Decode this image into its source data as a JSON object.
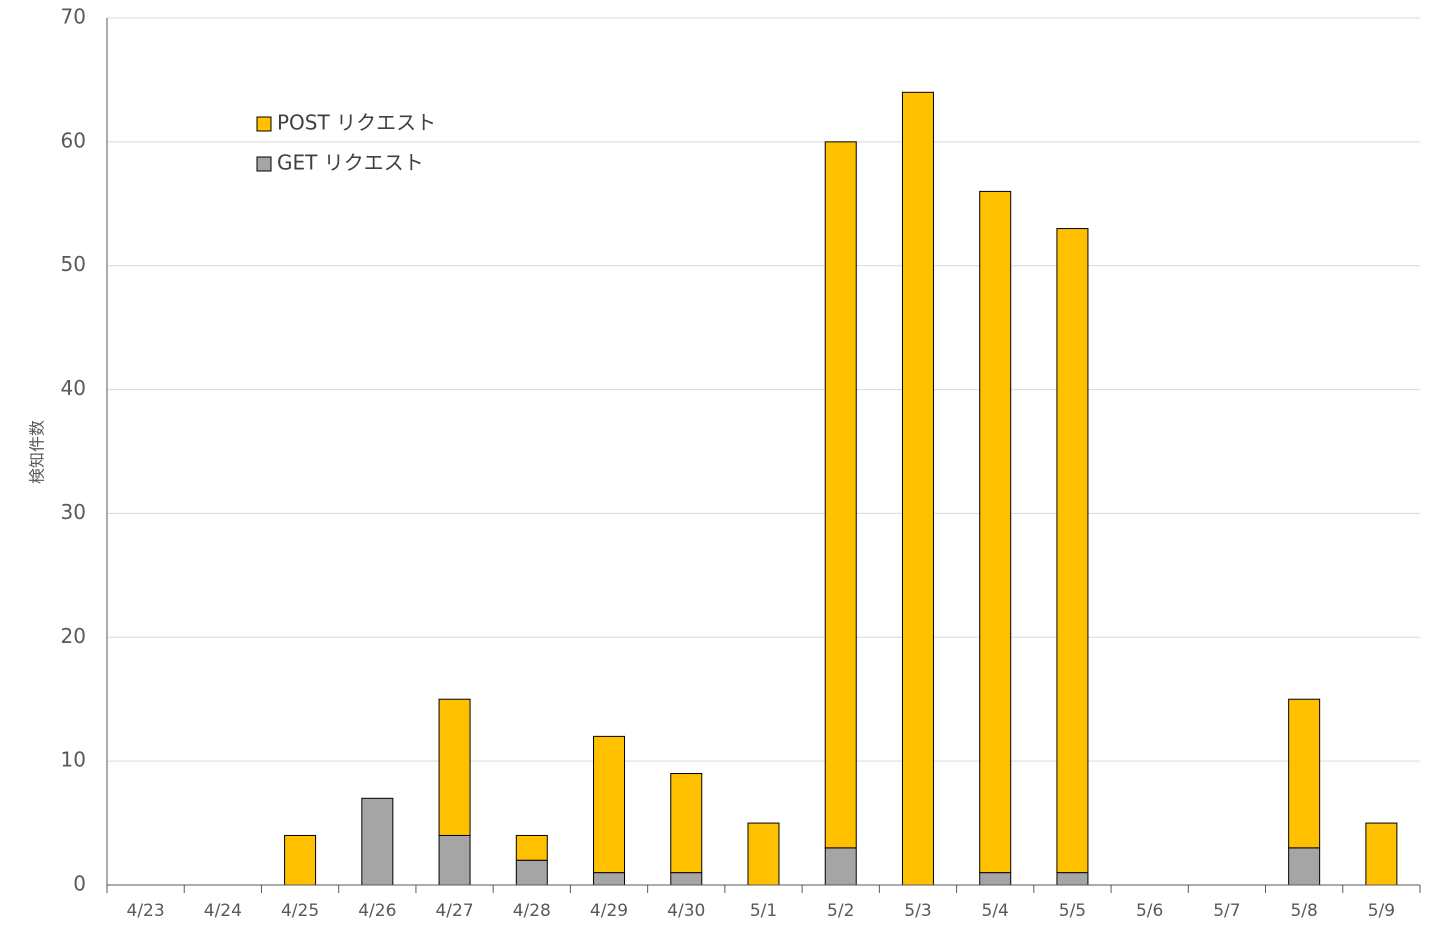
{
  "chart_data": {
    "type": "bar",
    "stacked": true,
    "y_label": "検知件数",
    "categories": [
      "4/23",
      "4/24",
      "4/25",
      "4/26",
      "4/27",
      "4/28",
      "4/29",
      "4/30",
      "5/1",
      "5/2",
      "5/3",
      "5/4",
      "5/5",
      "5/6",
      "5/7",
      "5/8",
      "5/9"
    ],
    "series": [
      {
        "name": "GET リクエスト",
        "color": "#a5a5a5",
        "values": [
          0,
          0,
          0,
          7,
          4,
          2,
          1,
          1,
          0,
          3,
          0,
          1,
          1,
          0,
          0,
          3,
          0
        ]
      },
      {
        "name": "POST リクエスト",
        "color": "#ffc000",
        "values": [
          0,
          0,
          4,
          0,
          11,
          2,
          11,
          8,
          5,
          57,
          64,
          55,
          52,
          0,
          0,
          12,
          5
        ]
      }
    ],
    "ylim": [
      0,
      70
    ],
    "yticks": [
      0,
      10,
      20,
      30,
      40,
      50,
      60,
      70
    ],
    "grid": true,
    "legend": "upper left"
  }
}
